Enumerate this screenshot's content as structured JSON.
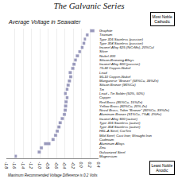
{
  "chart_data": {
    "type": "bar",
    "orientation": "horizontal",
    "title": "The Galvanic Series",
    "subtitle": "Average Voltage in Seawater",
    "footer": "Maximum Recommended Voltage Difference is 0.2 Volts",
    "annotations": [
      "Most Noble\nCathodic",
      "Least Noble\nAnodic"
    ],
    "categories": [
      "Graphite",
      "Titanium",
      "Type 316 Stainless (passive)",
      "Type 304 Stainless (passive)",
      "Inconel Alloy 625 (NiCrMo), 20%Cul",
      "Silver",
      "Nickel 200",
      "Silicon-Bronzing Alloys",
      "Inconel Alloy 600 (passive)",
      "70-30 Copper-Nickel",
      "Lead",
      "90-10 Copper-Nickel",
      "Manganese \"Bronze\" (58%Cu, 39%Zn)",
      "Silicon Bronze (96%Cu)",
      "Tin",
      "Lead - Tin Solder (50%, 50%)",
      "Copper",
      "Red Brass (85%Cu, 15%Zn)",
      "Yellow Brass (60%Cu, 20% Zn)",
      "Naval Brass, Tobin \"Bronze\" (60%Cu, 39%Zn)",
      "Aluminum Bronze (91%Cu, 7%Al, 2%Fe)",
      "Inconel Alloy 600 (active)",
      "Type 316 Stainless (active)",
      "Type 304 Stainless (active)",
      "HSL-A Steel, CorTen",
      "Mild Steel; Cast Iron; Wrought Iron",
      "Cadmium",
      "Aluminum Alloys",
      "Zinc",
      "Galvanized Steel",
      "Magnesium"
    ],
    "low": [
      0.2,
      0.1,
      0.05,
      0.02,
      -0.02,
      -0.08,
      -0.14,
      -0.18,
      -0.22,
      -0.25,
      -0.31,
      -0.3,
      -0.33,
      -0.36,
      -0.38,
      -0.42,
      -0.38,
      -0.41,
      -0.42,
      -0.43,
      -0.45,
      -0.5,
      -0.55,
      -0.58,
      -0.62,
      -0.66,
      -0.72,
      -0.9,
      -1.0,
      -1.05,
      -1.6
    ],
    "high": [
      0.3,
      0.16,
      0.1,
      0.08,
      0.04,
      -0.02,
      -0.07,
      -0.12,
      -0.15,
      -0.18,
      -0.24,
      -0.23,
      -0.26,
      -0.29,
      -0.32,
      -0.36,
      -0.32,
      -0.34,
      -0.35,
      -0.36,
      -0.38,
      -0.43,
      -0.48,
      -0.51,
      -0.55,
      -0.59,
      -0.65,
      -0.75,
      -0.93,
      -0.98,
      -1.55
    ],
    "color": "#9999bb",
    "xlim": [
      -1.8,
      0.4
    ],
    "xticks": [
      -1.8,
      -1.6,
      -1.4,
      -1.2,
      {
        "value": -1.0,
        "label": "-1.0"
      },
      -0.8,
      -0.6,
      -0.4,
      -0.2,
      {
        "value": 0.0,
        "label": "0.0"
      },
      0.2,
      0.4
    ],
    "grid": true
  }
}
